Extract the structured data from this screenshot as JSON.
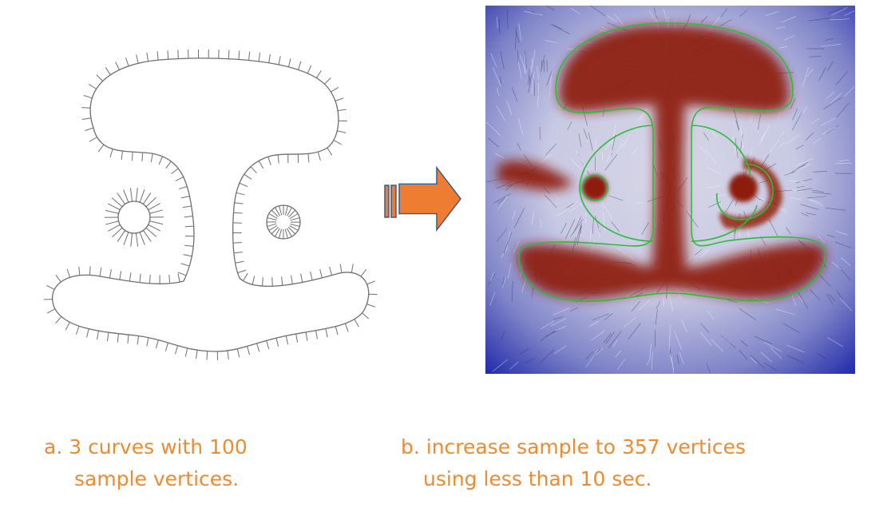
{
  "captions": {
    "a_line1": "a. 3 curves with 100",
    "a_line2": "sample vertices.",
    "b_line1": "b. increase sample to 357 vertices",
    "b_line2": "using less than 10 sec."
  },
  "colors": {
    "caption_text": "#f08a2e",
    "arrow_fill": "#ee7d31",
    "arrow_outline": "#3b5a8c",
    "field_high": "#8e1c08",
    "field_low": "#1c27a8",
    "contour": "#2bbd3a",
    "curve_stroke": "#6e6e6e"
  },
  "figures": {
    "left": {
      "curve_count": 3,
      "sample_vertices": 100
    },
    "right": {
      "sample_vertices": 357
    }
  }
}
